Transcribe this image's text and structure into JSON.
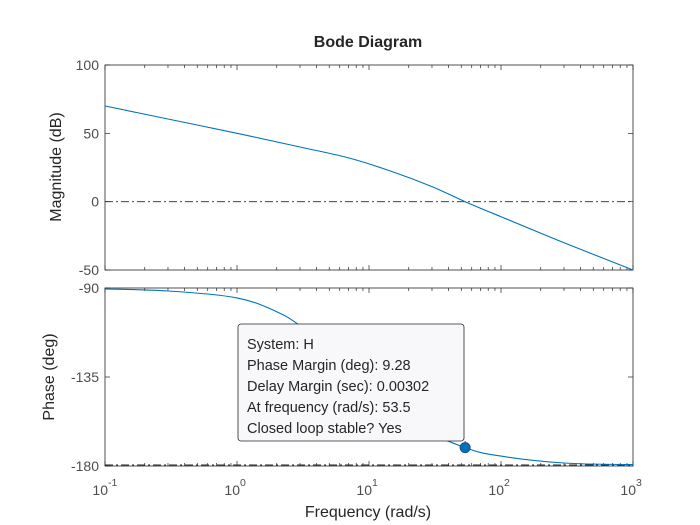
{
  "chart_data": [
    {
      "type": "line",
      "title": "Bode Diagram",
      "ylabel": "Magnitude (dB)",
      "xscale": "log",
      "xlim": [
        0.1,
        1000
      ],
      "ylim": [
        -50,
        100
      ],
      "yticks": [
        100,
        50,
        0,
        -50
      ],
      "yticklabels": [
        "100",
        "50",
        "0",
        "-50"
      ],
      "reference_lines": [
        {
          "y": 0,
          "style": "dash-dot"
        }
      ],
      "grid": false,
      "x": [
        0.1,
        0.3,
        1,
        3,
        7,
        15,
        30,
        53.5,
        100,
        300,
        1000
      ],
      "series": [
        {
          "color": "#0072bd",
          "values": [
            70,
            60.5,
            50,
            40,
            32,
            22,
            11,
            0,
            -11,
            -30,
            -50
          ]
        }
      ]
    },
    {
      "type": "line",
      "xlabel": "Frequency  (rad/s)",
      "ylabel": "Phase (deg)",
      "xscale": "log",
      "xlim": [
        0.1,
        1000
      ],
      "ylim": [
        -180,
        -90
      ],
      "yticks": [
        -90,
        -135,
        -180
      ],
      "yticklabels": [
        "-90",
        "-135",
        "-180"
      ],
      "xtick_bases": [
        "10",
        "10",
        "10",
        "10",
        "10"
      ],
      "xtick_exponents": [
        "-1",
        "0",
        "1",
        "2",
        "3"
      ],
      "reference_lines": [
        {
          "y": -180,
          "style": "dash-dot"
        }
      ],
      "grid": false,
      "x": [
        0.1,
        0.3,
        1,
        2,
        3,
        5,
        10,
        20,
        53.5,
        100,
        300,
        1000
      ],
      "series": [
        {
          "color": "#0072bd",
          "values": [
            -90.5,
            -91.5,
            -95,
            -102,
            -109,
            -120,
            -140,
            -158,
            -170.72,
            -175,
            -178.5,
            -179.3
          ]
        }
      ],
      "marker": {
        "x": 53.5,
        "y": -170.72
      },
      "datatip": {
        "line1": "System: H",
        "line2": "Phase Margin (deg): 9.28",
        "line3": "Delay Margin (sec): 0.00302",
        "line4": "At frequency (rad/s): 53.5",
        "line5": "Closed loop stable? Yes"
      }
    }
  ]
}
